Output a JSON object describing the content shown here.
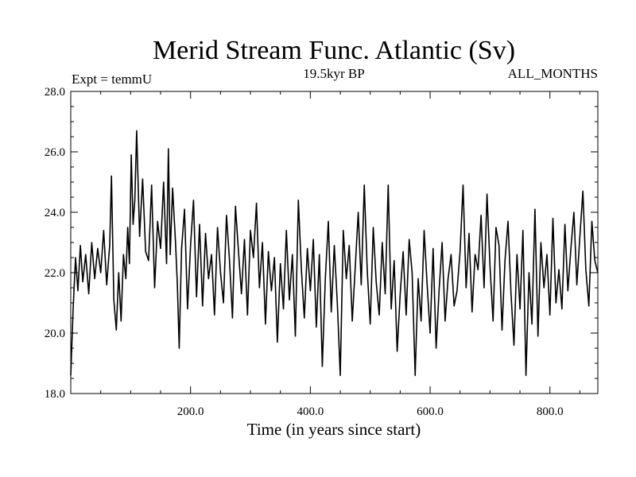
{
  "chart_data": {
    "type": "line",
    "title": "Merid Stream Func. Atlantic (Sv)",
    "subtitle_left": "Expt = temmU",
    "subtitle_center": "19.5kyr BP",
    "subtitle_right": "ALL_MONTHS",
    "xlabel": "Time (in years since start)",
    "ylabel": "",
    "xlim": [
      0,
      880
    ],
    "ylim": [
      18.0,
      28.0
    ],
    "x_ticks": [
      200,
      400,
      600,
      800
    ],
    "x_tick_labels": [
      "200.0",
      "400.0",
      "600.0",
      "800.0"
    ],
    "y_ticks": [
      18,
      20,
      22,
      24,
      26,
      28
    ],
    "y_tick_labels": [
      "18.0",
      "20.0",
      "22.0",
      "24.0",
      "26.0",
      "28.0"
    ],
    "grid": false,
    "line_color": "#000000",
    "series": [
      {
        "x": [
          0,
          4,
          8,
          12,
          16,
          20,
          25,
          30,
          35,
          40,
          45,
          50,
          55,
          60,
          65,
          68,
          72,
          76,
          80,
          84,
          88,
          92,
          95,
          98,
          101,
          104,
          107,
          110,
          115,
          120,
          125,
          130,
          135,
          140,
          145,
          150,
          155,
          160,
          163,
          166,
          170,
          175,
          178,
          181,
          185,
          190,
          195,
          200,
          205,
          210,
          215,
          220,
          225,
          230,
          235,
          240,
          245,
          250,
          255,
          260,
          265,
          270,
          275,
          280,
          285,
          290,
          295,
          300,
          305,
          310,
          315,
          320,
          325,
          330,
          335,
          340,
          345,
          350,
          355,
          360,
          365,
          370,
          375,
          380,
          385,
          390,
          395,
          400,
          405,
          410,
          415,
          420,
          425,
          430,
          435,
          440,
          445,
          450,
          455,
          460,
          465,
          470,
          475,
          480,
          485,
          490,
          495,
          500,
          505,
          510,
          515,
          520,
          525,
          530,
          535,
          540,
          545,
          550,
          555,
          560,
          565,
          570,
          575,
          580,
          585,
          590,
          595,
          600,
          605,
          610,
          615,
          620,
          625,
          630,
          635,
          640,
          645,
          650,
          655,
          660,
          665,
          670,
          675,
          680,
          685,
          690,
          695,
          700,
          705,
          710,
          715,
          720,
          725,
          730,
          735,
          740,
          745,
          750,
          755,
          760,
          765,
          770,
          775,
          780,
          785,
          790,
          795,
          800,
          805,
          810,
          815,
          820,
          825,
          830,
          835,
          840,
          845,
          850,
          855,
          860,
          865,
          870,
          875,
          880
        ],
        "values": [
          18.6,
          20.8,
          22.5,
          21.4,
          22.9,
          21.7,
          22.6,
          21.3,
          23.0,
          21.8,
          22.8,
          22.0,
          23.4,
          21.6,
          22.9,
          25.2,
          21.1,
          20.1,
          22.0,
          20.4,
          22.6,
          21.8,
          23.5,
          22.3,
          25.9,
          23.6,
          24.4,
          26.7,
          23.2,
          25.1,
          22.7,
          22.4,
          24.9,
          21.5,
          23.7,
          22.8,
          25.0,
          22.3,
          26.1,
          22.6,
          24.8,
          23.0,
          21.6,
          19.5,
          22.8,
          24.1,
          20.8,
          22.9,
          24.4,
          21.2,
          23.6,
          20.9,
          23.3,
          21.8,
          22.6,
          20.6,
          23.5,
          22.0,
          21.0,
          23.9,
          22.4,
          20.5,
          24.2,
          22.7,
          21.3,
          23.1,
          20.6,
          23.4,
          22.5,
          24.3,
          21.5,
          23.0,
          20.3,
          22.7,
          21.4,
          22.5,
          19.7,
          22.3,
          20.8,
          23.4,
          21.1,
          22.6,
          19.9,
          24.4,
          22.1,
          20.5,
          22.8,
          21.4,
          23.1,
          20.2,
          22.6,
          18.9,
          21.8,
          23.7,
          20.7,
          22.9,
          21.0,
          18.6,
          23.4,
          21.8,
          22.9,
          20.4,
          22.2,
          24.0,
          21.6,
          24.9,
          22.1,
          20.3,
          23.5,
          21.7,
          20.6,
          23.0,
          21.3,
          24.9,
          20.8,
          22.4,
          19.4,
          21.3,
          22.7,
          20.6,
          23.1,
          22.0,
          18.6,
          21.8,
          20.4,
          23.4,
          21.6,
          20.0,
          22.8,
          19.5,
          21.4,
          23.0,
          20.4,
          21.8,
          22.6,
          20.9,
          21.4,
          22.7,
          24.9,
          21.5,
          23.3,
          20.7,
          22.6,
          22.1,
          23.9,
          21.5,
          24.6,
          22.2,
          20.4,
          23.5,
          22.9,
          20.1,
          22.4,
          23.7,
          21.3,
          19.6,
          22.6,
          20.8,
          23.4,
          18.6,
          22.0,
          20.3,
          24.1,
          19.9,
          23.0,
          21.5,
          22.6,
          20.6,
          23.8,
          21.0,
          22.1,
          20.8,
          23.6,
          21.4,
          22.8,
          24.0,
          21.6,
          23.2,
          24.7,
          22.1,
          20.9,
          23.7,
          22.4,
          22.0
        ]
      }
    ]
  }
}
